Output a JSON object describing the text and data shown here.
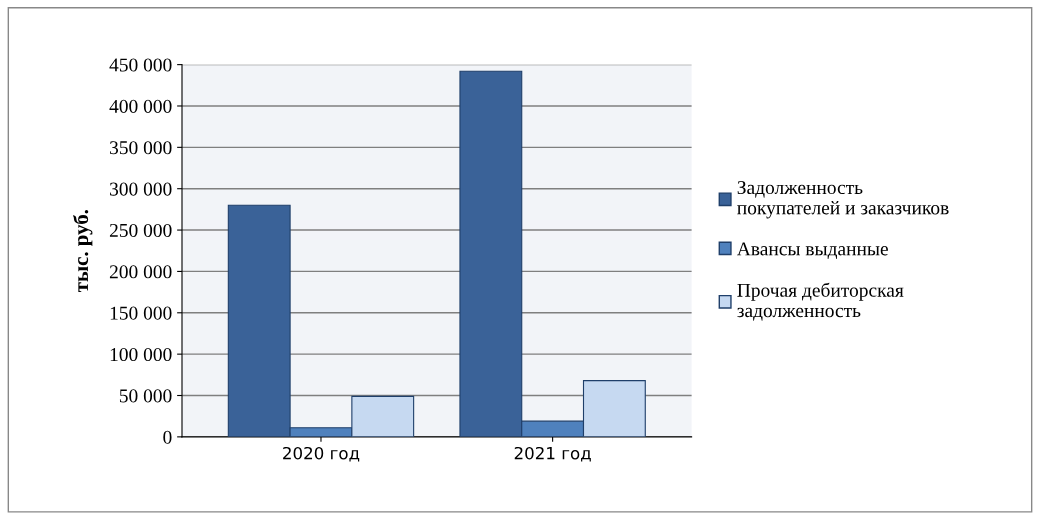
{
  "chart_data": {
    "type": "bar",
    "ylabel": "тыс. руб.",
    "categories": [
      "2020 год",
      "2021 год"
    ],
    "series": [
      {
        "name": "Задолженность\nпокупателей и заказчиков",
        "color": "#3a6298",
        "values": [
          280000,
          442000
        ]
      },
      {
        "name": "Авансы выданные",
        "color": "#4f81bd",
        "values": [
          11000,
          19000
        ]
      },
      {
        "name": "Прочая дебиторская\nзадолженность",
        "color": "#c6d9f1",
        "values": [
          49000,
          68000
        ]
      }
    ],
    "ylim": [
      0,
      450000
    ],
    "yticks": [
      {
        "value": 0,
        "label": "0"
      },
      {
        "value": 50000,
        "label": "50 000"
      },
      {
        "value": 100000,
        "label": "100 000"
      },
      {
        "value": 150000,
        "label": "150 000"
      },
      {
        "value": 200000,
        "label": "200 000"
      },
      {
        "value": 250000,
        "label": "250 000"
      },
      {
        "value": 300000,
        "label": "300 000"
      },
      {
        "value": 350000,
        "label": "350 000"
      },
      {
        "value": 400000,
        "label": "400 000"
      },
      {
        "value": 450000,
        "label": "450 000"
      }
    ],
    "grid": "y",
    "legend": "right"
  }
}
